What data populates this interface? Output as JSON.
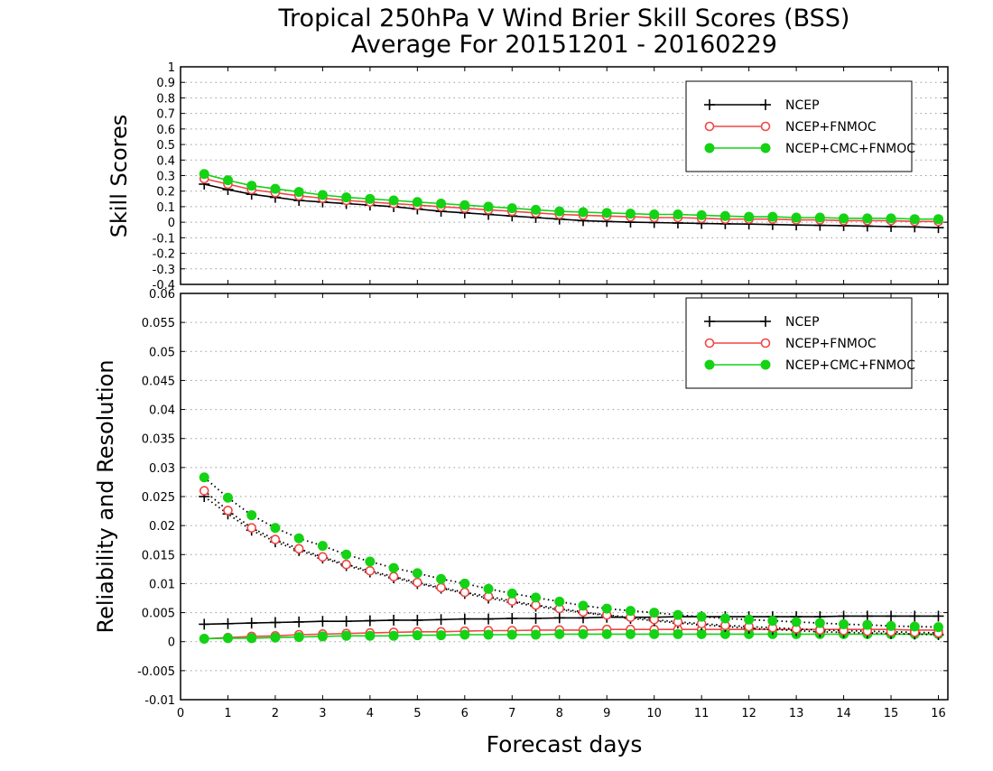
{
  "title": {
    "line1": "Tropical 250hPa V Wind Brier Skill Scores (BSS)",
    "line2": "Average For 20151201 - 20160229"
  },
  "colors": {
    "NCEP": "#000000",
    "NCEP+FNMOC": "#f04646",
    "NCEP+CMC+FNMOC": "#14d214",
    "grid": "#9a9a9a"
  },
  "chart_data": [
    {
      "type": "line",
      "ylabel": "Skill Scores",
      "xlabel": "",
      "xlim": [
        0,
        16.2
      ],
      "ylim": [
        -0.4,
        1
      ],
      "x_ticks": [
        0,
        1,
        2,
        3,
        4,
        5,
        6,
        7,
        8,
        9,
        10,
        11,
        12,
        13,
        14,
        15,
        16
      ],
      "y_ticks": [
        "-0.4",
        "-0.3",
        "-0.2",
        "-0.1",
        "0",
        "0.1",
        "0.2",
        "0.3",
        "0.4",
        "0.5",
        "0.6",
        "0.7",
        "0.8",
        "0.9",
        "1"
      ],
      "grid": "horizontal dotted",
      "legend_position": "top-right",
      "x": [
        0.5,
        1,
        1.5,
        2,
        2.5,
        3,
        3.5,
        4,
        4.5,
        5,
        5.5,
        6,
        6.5,
        7,
        7.5,
        8,
        8.5,
        9,
        9.5,
        10,
        10.5,
        11,
        11.5,
        12,
        12.5,
        13,
        13.5,
        14,
        14.5,
        15,
        15.5,
        16
      ],
      "series": [
        {
          "name": "NCEP",
          "marker": "plus",
          "values": [
            0.245,
            0.21,
            0.18,
            0.16,
            0.14,
            0.13,
            0.12,
            0.11,
            0.1,
            0.085,
            0.07,
            0.06,
            0.05,
            0.04,
            0.03,
            0.02,
            0.01,
            0.005,
            0,
            -0.002,
            -0.005,
            -0.008,
            -0.01,
            -0.012,
            -0.015,
            -0.018,
            -0.02,
            -0.022,
            -0.025,
            -0.028,
            -0.03,
            -0.035
          ]
        },
        {
          "name": "NCEP+FNMOC",
          "marker": "open-circle",
          "values": [
            0.28,
            0.245,
            0.21,
            0.19,
            0.17,
            0.155,
            0.14,
            0.13,
            0.12,
            0.11,
            0.1,
            0.09,
            0.08,
            0.07,
            0.06,
            0.05,
            0.045,
            0.04,
            0.035,
            0.03,
            0.03,
            0.025,
            0.02,
            0.02,
            0.02,
            0.015,
            0.015,
            0.01,
            0.01,
            0.01,
            0.005,
            0.005
          ]
        },
        {
          "name": "NCEP+CMC+FNMOC",
          "marker": "filled-circle",
          "values": [
            0.31,
            0.27,
            0.235,
            0.215,
            0.195,
            0.175,
            0.16,
            0.15,
            0.14,
            0.13,
            0.12,
            0.11,
            0.1,
            0.09,
            0.08,
            0.07,
            0.065,
            0.06,
            0.055,
            0.05,
            0.05,
            0.045,
            0.04,
            0.035,
            0.035,
            0.03,
            0.03,
            0.025,
            0.025,
            0.025,
            0.02,
            0.02
          ]
        }
      ]
    },
    {
      "type": "line",
      "ylabel": "Reliability and Resolution",
      "xlabel": "Forecast days",
      "xlim": [
        0,
        16.2
      ],
      "ylim": [
        -0.01,
        0.06
      ],
      "x_ticks": [
        0,
        1,
        2,
        3,
        4,
        5,
        6,
        7,
        8,
        9,
        10,
        11,
        12,
        13,
        14,
        15,
        16
      ],
      "y_ticks": [
        "-0.01",
        "-0.005",
        "0",
        "0.005",
        "0.01",
        "0.015",
        "0.02",
        "0.025",
        "0.03",
        "0.035",
        "0.04",
        "0.045",
        "0.05",
        "0.055",
        "0.06"
      ],
      "grid": "horizontal dotted",
      "legend_position": "top-right",
      "x": [
        0.5,
        1,
        1.5,
        2,
        2.5,
        3,
        3.5,
        4,
        4.5,
        5,
        5.5,
        6,
        6.5,
        7,
        7.5,
        8,
        8.5,
        9,
        9.5,
        10,
        10.5,
        11,
        11.5,
        12,
        12.5,
        13,
        13.5,
        14,
        14.5,
        15,
        15.5,
        16
      ],
      "series": [
        {
          "name": "NCEP",
          "marker": "plus",
          "line": "solid",
          "values": [
            0.003,
            0.0031,
            0.0032,
            0.0033,
            0.0034,
            0.0035,
            0.0035,
            0.0036,
            0.0037,
            0.0037,
            0.0038,
            0.0039,
            0.0039,
            0.004,
            0.004,
            0.0041,
            0.0041,
            0.0042,
            0.0042,
            0.0042,
            0.0043,
            0.0043,
            0.0043,
            0.0043,
            0.0043,
            0.0043,
            0.0043,
            0.0044,
            0.0044,
            0.0044,
            0.0044,
            0.0044
          ]
        },
        {
          "name": "NCEP+FNMOC",
          "marker": "open-circle",
          "line": "solid",
          "values": [
            0.0005,
            0.0007,
            0.0009,
            0.001,
            0.0012,
            0.0013,
            0.0014,
            0.0015,
            0.0016,
            0.0017,
            0.0017,
            0.0018,
            0.0019,
            0.0019,
            0.002,
            0.002,
            0.002,
            0.0021,
            0.0021,
            0.0021,
            0.0021,
            0.0021,
            0.0021,
            0.0021,
            0.0021,
            0.0021,
            0.0021,
            0.0021,
            0.0021,
            0.0021,
            0.002,
            0.002
          ]
        },
        {
          "name": "NCEP+CMC+FNMOC",
          "marker": "filled-circle",
          "line": "solid",
          "values": [
            0.0005,
            0.0006,
            0.0006,
            0.0007,
            0.0008,
            0.0009,
            0.001,
            0.001,
            0.001,
            0.0011,
            0.0011,
            0.0012,
            0.0012,
            0.0012,
            0.0012,
            0.0013,
            0.0013,
            0.0013,
            0.0013,
            0.0013,
            0.0013,
            0.0013,
            0.0013,
            0.0013,
            0.0013,
            0.0013,
            0.0013,
            0.0013,
            0.0013,
            0.0013,
            0.0013,
            0.0013
          ]
        },
        {
          "name": "NCEP",
          "marker": "plus",
          "line": "dotted",
          "values": [
            0.025,
            0.022,
            0.0192,
            0.0172,
            0.0157,
            0.0144,
            0.0131,
            0.012,
            0.011,
            0.01,
            0.0092,
            0.0083,
            0.0075,
            0.0068,
            0.0061,
            0.0055,
            0.005,
            0.0045,
            0.004,
            0.0036,
            0.0032,
            0.0029,
            0.0026,
            0.0023,
            0.0021,
            0.0019,
            0.0017,
            0.0016,
            0.0015,
            0.0014,
            0.0013,
            0.0012
          ]
        },
        {
          "name": "NCEP+FNMOC",
          "marker": "open-circle",
          "line": "dotted",
          "values": [
            0.026,
            0.0226,
            0.0196,
            0.0176,
            0.016,
            0.0146,
            0.0133,
            0.0122,
            0.0112,
            0.0102,
            0.0093,
            0.0085,
            0.0078,
            0.007,
            0.0063,
            0.0057,
            0.0051,
            0.0046,
            0.0042,
            0.0038,
            0.0034,
            0.0031,
            0.0028,
            0.0026,
            0.0024,
            0.0022,
            0.002,
            0.0019,
            0.0018,
            0.0017,
            0.0016,
            0.0015
          ]
        },
        {
          "name": "NCEP+CMC+FNMOC",
          "marker": "filled-circle",
          "line": "dotted",
          "values": [
            0.0283,
            0.0248,
            0.0218,
            0.0196,
            0.0178,
            0.0165,
            0.015,
            0.0138,
            0.0127,
            0.0118,
            0.0108,
            0.01,
            0.0091,
            0.0083,
            0.0076,
            0.0069,
            0.0062,
            0.0057,
            0.0053,
            0.005,
            0.0046,
            0.0043,
            0.004,
            0.0038,
            0.0036,
            0.0034,
            0.0032,
            0.003,
            0.0029,
            0.0027,
            0.0026,
            0.0025
          ]
        }
      ]
    }
  ],
  "legends": [
    {
      "items": [
        "NCEP",
        "NCEP+FNMOC",
        "NCEP+CMC+FNMOC"
      ]
    },
    {
      "items": [
        "NCEP",
        "NCEP+FNMOC",
        "NCEP+CMC+FNMOC"
      ]
    }
  ]
}
